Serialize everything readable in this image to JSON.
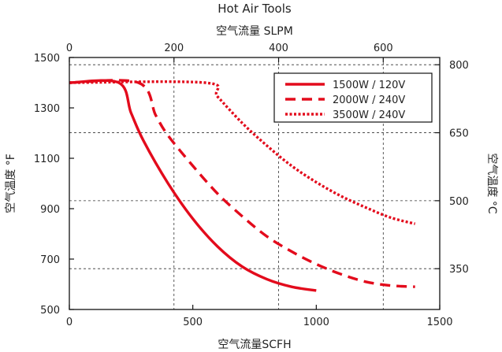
{
  "chart_data": {
    "type": "line",
    "title": "Hot Air Tools",
    "x_bottom": {
      "label": "空气流量SCFH",
      "range": [
        0,
        1500
      ],
      "ticks": [
        0,
        500,
        1000,
        1500
      ]
    },
    "x_top": {
      "label": "空气流量 SLPM",
      "range": [
        0,
        708
      ],
      "ticks": [
        0,
        200,
        400,
        600
      ]
    },
    "y_left": {
      "label": "空气温度 °F",
      "range": [
        500,
        1500
      ],
      "ticks": [
        500,
        700,
        900,
        1100,
        1300,
        1500
      ]
    },
    "y_right": {
      "label": "空气温度 °C",
      "range": [
        260,
        816
      ],
      "ticks": [
        350,
        500,
        650,
        800
      ]
    },
    "grid": "dashed",
    "legend_position": "top-right",
    "series": [
      {
        "name": "1500W / 120V",
        "color": "#e30b1c",
        "style": "solid",
        "points": [
          [
            0,
            1400
          ],
          [
            200,
            1400
          ],
          [
            250,
            1280
          ],
          [
            300,
            1170
          ],
          [
            400,
            1000
          ],
          [
            500,
            860
          ],
          [
            600,
            750
          ],
          [
            700,
            670
          ],
          [
            800,
            620
          ],
          [
            900,
            590
          ],
          [
            1000,
            575
          ]
        ]
      },
      {
        "name": "2000W / 240V",
        "color": "#e30b1c",
        "style": "dashed",
        "points": [
          [
            0,
            1400
          ],
          [
            280,
            1400
          ],
          [
            350,
            1270
          ],
          [
            400,
            1190
          ],
          [
            500,
            1070
          ],
          [
            600,
            960
          ],
          [
            700,
            870
          ],
          [
            800,
            790
          ],
          [
            900,
            730
          ],
          [
            1000,
            680
          ],
          [
            1100,
            640
          ],
          [
            1200,
            610
          ],
          [
            1300,
            595
          ],
          [
            1400,
            590
          ]
        ]
      },
      {
        "name": "3500W / 240V",
        "color": "#e30b1c",
        "style": "dotted",
        "points": [
          [
            0,
            1400
          ],
          [
            550,
            1400
          ],
          [
            600,
            1345
          ],
          [
            700,
            1240
          ],
          [
            800,
            1150
          ],
          [
            900,
            1070
          ],
          [
            1000,
            1005
          ],
          [
            1100,
            950
          ],
          [
            1200,
            905
          ],
          [
            1300,
            865
          ],
          [
            1400,
            840
          ]
        ]
      }
    ]
  }
}
